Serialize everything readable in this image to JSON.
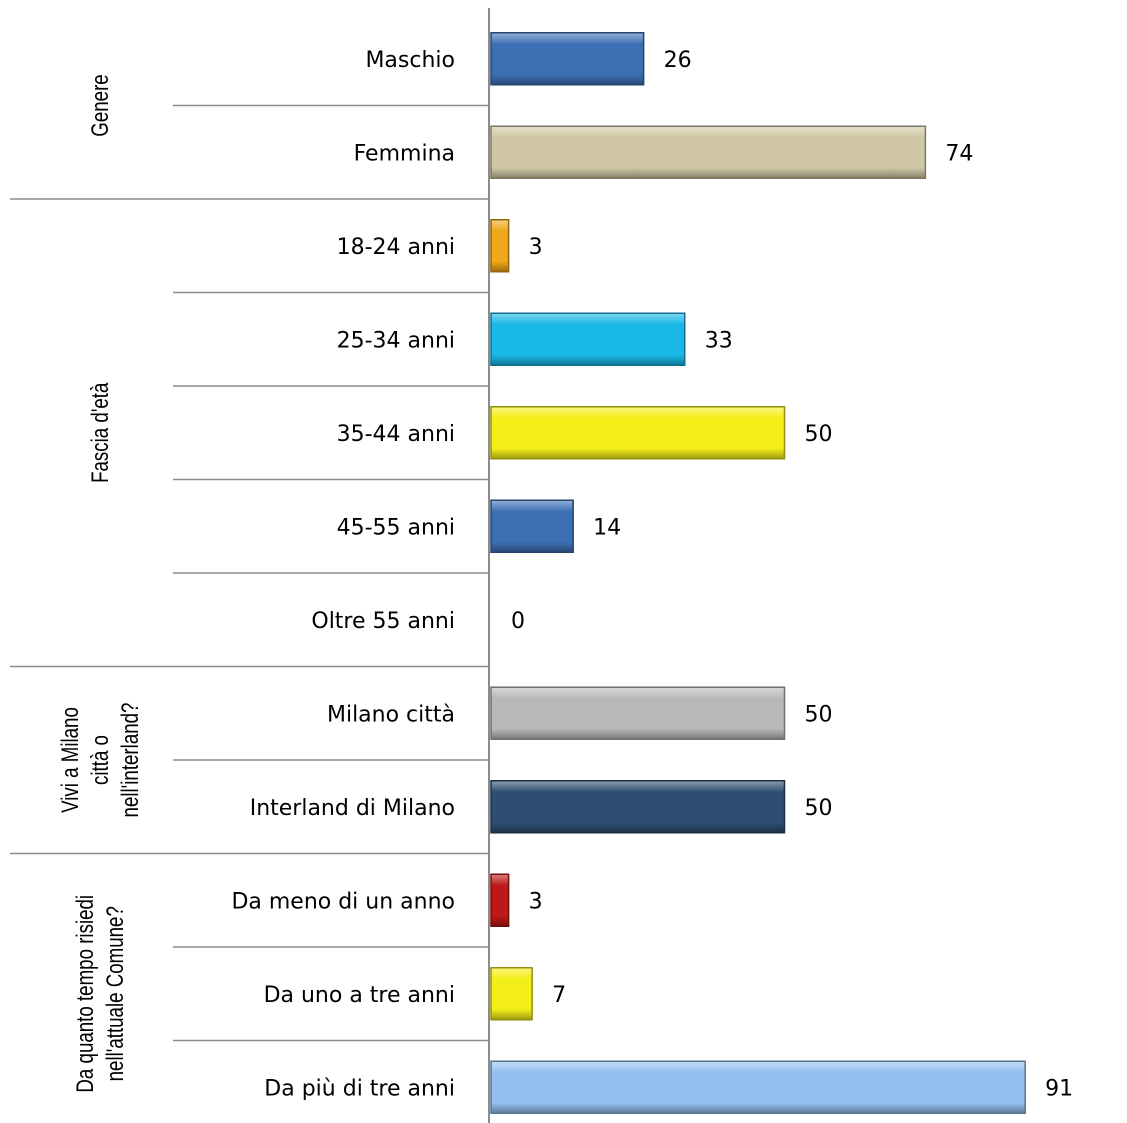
{
  "chart_data": {
    "type": "bar",
    "orientation": "horizontal",
    "title": "",
    "xlabel": "",
    "ylabel": "",
    "xlim": [
      0,
      100
    ],
    "grid": false,
    "legend": "none",
    "groups": [
      {
        "label": "Genere",
        "label_lines": [
          "Genere"
        ],
        "rows": [
          0,
          1
        ]
      },
      {
        "label": "Fascia d'età",
        "label_lines": [
          "Fascia d'età"
        ],
        "rows": [
          2,
          3,
          4,
          5,
          6
        ]
      },
      {
        "label": "Vivi a Milano città o nell'interland?",
        "label_lines": [
          "Vivi a Milano",
          "città o",
          "nell'interland?"
        ],
        "rows": [
          7,
          8
        ]
      },
      {
        "label": "Da quanto tempo risiedi nell'attuale Comune?",
        "label_lines": [
          "Da quanto tempo risiedi",
          "nell'attuale Comune?"
        ],
        "rows": [
          9,
          10,
          11
        ]
      }
    ],
    "categories": [
      "Maschio",
      "Femmina",
      "18-24 anni",
      "25-34 anni",
      "35-44 anni",
      "45-55 anni",
      "Oltre 55 anni",
      "Milano città",
      "Interland di Milano",
      "Da meno di un anno",
      "Da uno a tre anni",
      "Da più di tre anni"
    ],
    "values": [
      26,
      74,
      3,
      33,
      50,
      14,
      0,
      50,
      50,
      3,
      7,
      91
    ],
    "value_labels": [
      "26",
      "74",
      "3",
      "33",
      "50",
      "14",
      "0",
      "50",
      "50",
      "3",
      "7",
      "91"
    ],
    "colors": [
      "#3d6fb5",
      "#cfc6a4",
      "#f0a818",
      "#18b8e8",
      "#f4ee18",
      "#3d6fb5",
      "#3d6fb5",
      "#b8b8b8",
      "#2e4d72",
      "#c01818",
      "#f4ee18",
      "#93bff0"
    ]
  }
}
